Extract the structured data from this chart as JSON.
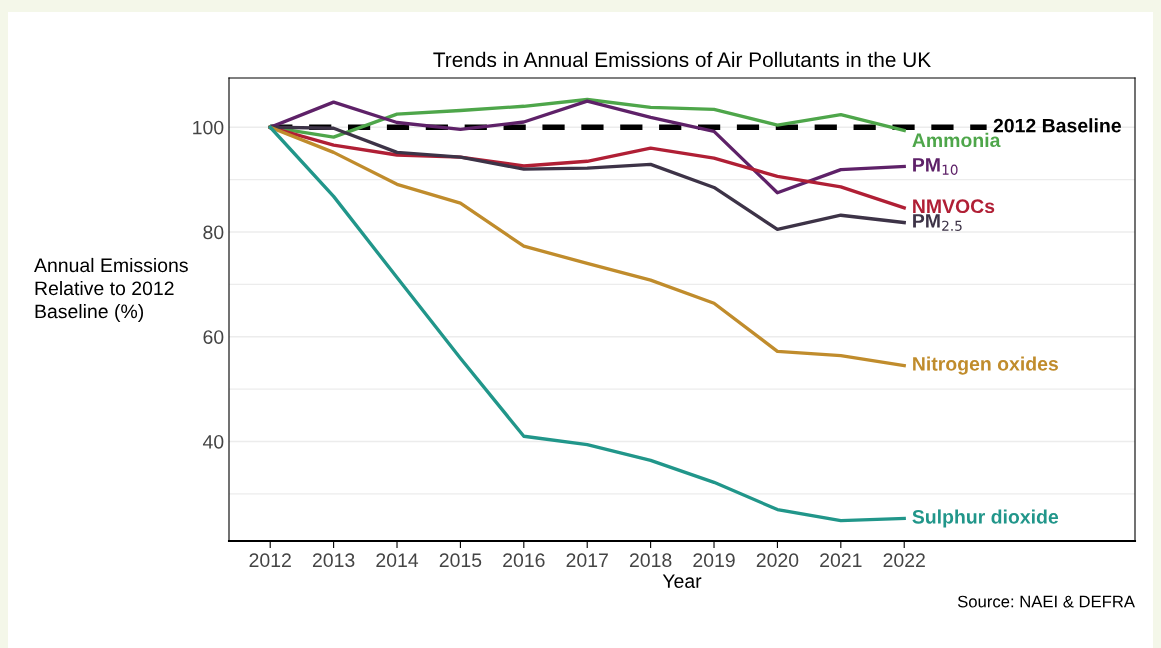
{
  "chart_data": {
    "type": "line",
    "title": "Trends in Annual Emissions of Air Pollutants in the UK",
    "xlabel": "Year",
    "ylabel": "Annual Emissions\nRelative to 2012\nBaseline (%)",
    "x": [
      2012,
      2013,
      2014,
      2015,
      2016,
      2017,
      2018,
      2019,
      2020,
      2021,
      2022
    ],
    "series": [
      {
        "name": "Ammonia",
        "color": "#4ea64a",
        "values": [
          100,
          98.1,
          102.5,
          103.2,
          104,
          105.3,
          103.8,
          103.4,
          100.4,
          102.4,
          99.4
        ]
      },
      {
        "name": "PM$_{10}$",
        "color": "#5e2168",
        "values": [
          100,
          104.8,
          100.9,
          99.6,
          101,
          105,
          101.9,
          99.2,
          87.5,
          91.9,
          92.5
        ]
      },
      {
        "name": "NMVOCs",
        "color": "#b01f35",
        "values": [
          100,
          96.6,
          94.7,
          94.3,
          92.6,
          93.5,
          96,
          94.1,
          90.6,
          88.6,
          84.6
        ]
      },
      {
        "name": "PM$_{2.5}$",
        "color": "#3d3347",
        "values": [
          100,
          99.8,
          95.2,
          94.3,
          92,
          92.2,
          92.9,
          88.5,
          80.5,
          83.2,
          81.8
        ]
      },
      {
        "name": "Nitrogen oxides",
        "color": "#c08c2c",
        "values": [
          100,
          95.2,
          89.1,
          85.5,
          77.3,
          74,
          70.8,
          66.4,
          57.2,
          56.4,
          54.5
        ]
      },
      {
        "name": "Sulphur dioxide",
        "color": "#21968a",
        "values": [
          100,
          86.8,
          71.3,
          55.9,
          41,
          39.4,
          36.4,
          32.2,
          27,
          24.9,
          25.3
        ]
      }
    ],
    "xlim": [
      2011.35,
      2025.64
    ],
    "xticks": [
      2012,
      2013,
      2014,
      2015,
      2016,
      2017,
      2018,
      2019,
      2020,
      2021,
      2022
    ],
    "ylim": [
      21,
      109.4
    ],
    "yticks": [
      {
        "value": 30,
        "label": null
      },
      40,
      {
        "value": 50,
        "label": null
      },
      60,
      {
        "value": 70,
        "label": null
      },
      80,
      {
        "value": 90,
        "label": null
      },
      100
    ],
    "grid": "y",
    "legend": false,
    "marker": "none",
    "line_style": "solid",
    "ref_lines": [
      {
        "axis": "y",
        "value": 100,
        "label": "2012 Baseline",
        "color": "#000000",
        "line_style": "dashed"
      }
    ],
    "annotations": [
      "Source: NAEI & DEFRA"
    ]
  }
}
